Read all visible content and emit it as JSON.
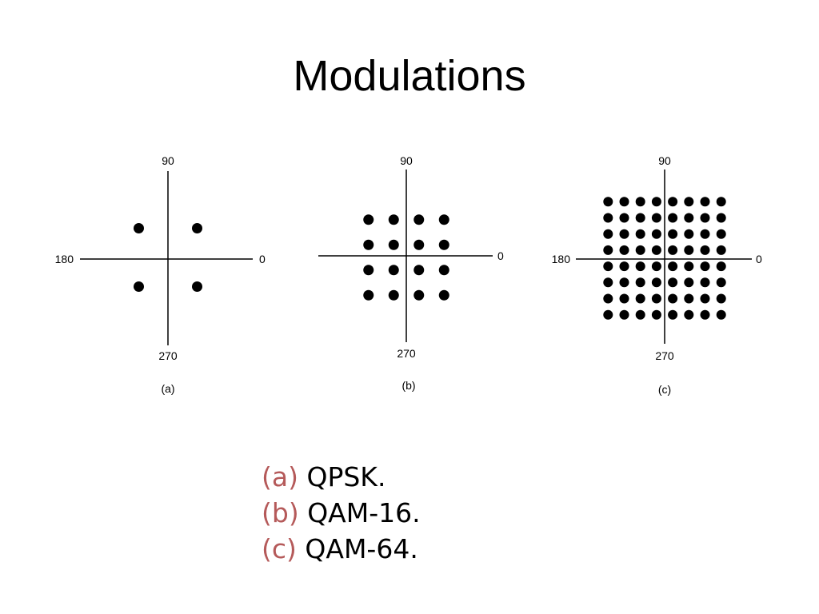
{
  "slide": {
    "title": "Modulations"
  },
  "diagrams": [
    {
      "id": "qpsk",
      "caption": "(a)",
      "axis_labels": {
        "top": "90",
        "left": "180",
        "right": "0",
        "bottom": "270"
      },
      "grid": 2
    },
    {
      "id": "qam16",
      "caption": "(b)",
      "axis_labels": {
        "top": "90",
        "left": "",
        "right": "0",
        "bottom": "270"
      },
      "grid": 4
    },
    {
      "id": "qam64",
      "caption": "(c)",
      "axis_labels": {
        "top": "90",
        "left": "180",
        "right": "0",
        "bottom": "270"
      },
      "grid": 8
    }
  ],
  "captions": [
    {
      "tag": "(a)",
      "text": "QPSK."
    },
    {
      "tag": "(b)",
      "text": "QAM-16."
    },
    {
      "tag": "(c)",
      "text": "QAM-64."
    }
  ],
  "colors": {
    "caption_tag": "#b55a5a",
    "text": "#000000"
  }
}
